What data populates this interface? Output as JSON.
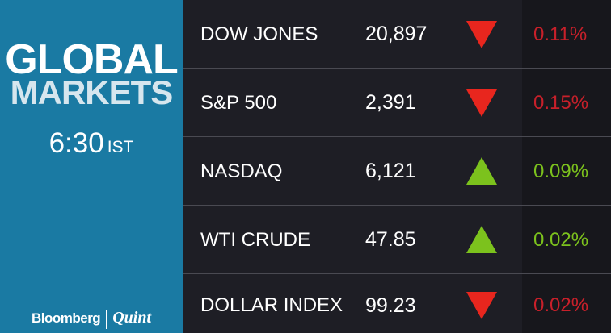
{
  "header": {
    "title_line1": "GLOBAL",
    "title_line2": "MARKETS",
    "time": "6:30",
    "timezone": "IST"
  },
  "brand": {
    "left": "Bloomberg",
    "right": "Quint"
  },
  "colors": {
    "panel_blue": "#1a7aa3",
    "down_red": "#e8261e",
    "up_green": "#7cc21d",
    "pct_down": "#c8202a",
    "pct_up": "#7cc21d"
  },
  "markets": [
    {
      "name": "DOW JONES",
      "value": "20,897",
      "direction": "down",
      "change": "0.11%"
    },
    {
      "name": "S&P 500",
      "value": "2,391",
      "direction": "down",
      "change": "0.15%"
    },
    {
      "name": "NASDAQ",
      "value": "6,121",
      "direction": "up",
      "change": "0.09%"
    },
    {
      "name": "WTI CRUDE",
      "value": "47.85",
      "direction": "up",
      "change": "0.02%"
    },
    {
      "name": "DOLLAR INDEX",
      "value": "99.23",
      "direction": "down",
      "change": "0.02%"
    }
  ]
}
